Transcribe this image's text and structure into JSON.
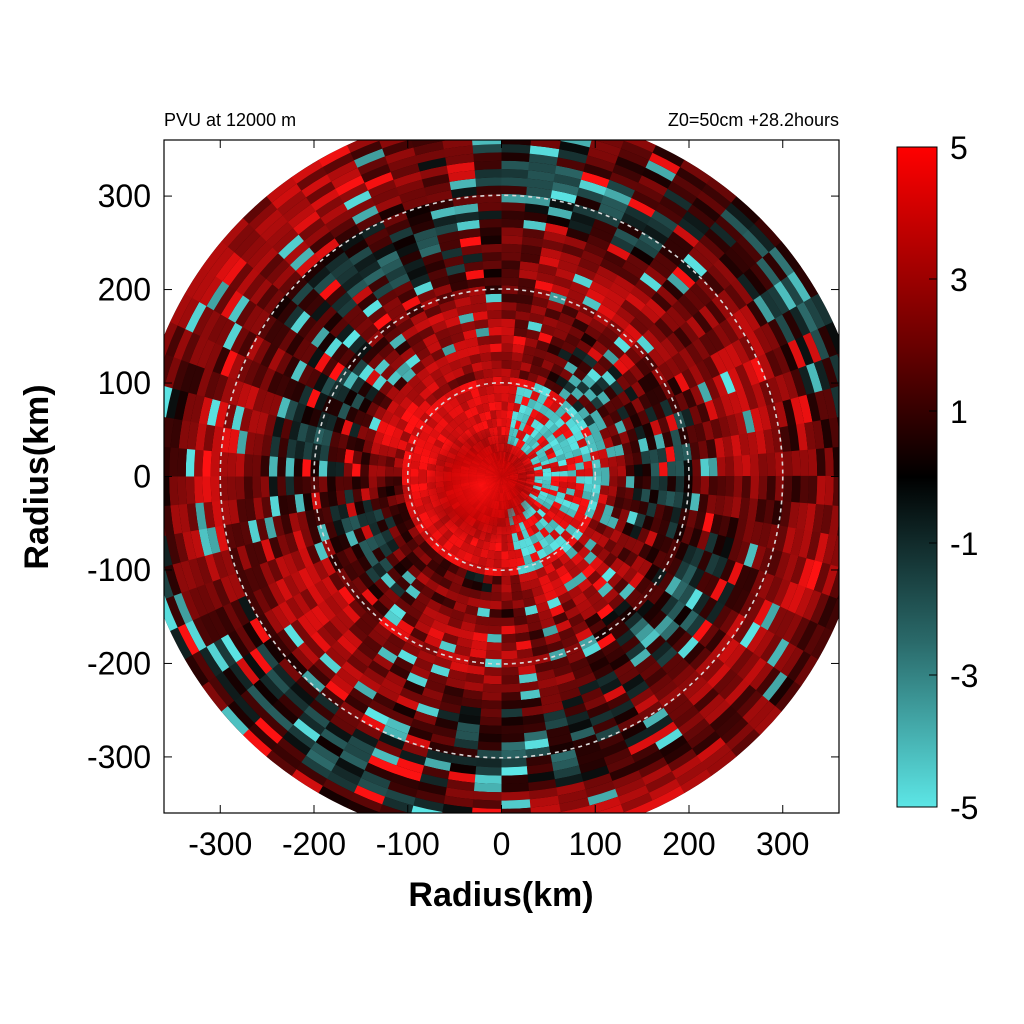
{
  "chart_data": {
    "type": "heatmap",
    "title_left": "PVU at 12000 m",
    "title_right": "Z0=50cm  +28.2hours",
    "xlabel": "Radius(km)",
    "ylabel": "Radius(km)",
    "xlim": [
      -360,
      360
    ],
    "ylim": [
      -360,
      360
    ],
    "xticks": [
      -300,
      -200,
      -100,
      0,
      100,
      200,
      300
    ],
    "yticks": [
      300,
      200,
      100,
      0,
      -100,
      -200,
      -300
    ],
    "domain_radius_km": 390,
    "reference_circles_km": [
      100,
      200,
      300
    ],
    "colorbar": {
      "min": -5,
      "max": 5,
      "ticks": [
        5,
        3,
        1,
        -1,
        -3,
        -5
      ],
      "colors": {
        "low": "#5ce6e6",
        "mid": "#000000",
        "high": "#ff0000"
      }
    },
    "field_description": "PVU field, red positive maxima in core (r<100 km), cyan negative bands near r≈100 km east side and scattered outer patches"
  }
}
